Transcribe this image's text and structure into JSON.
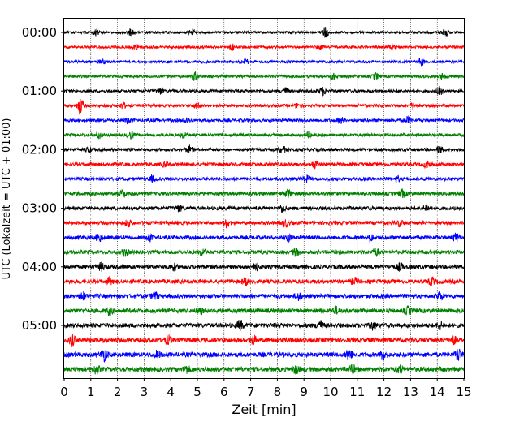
{
  "chart_data": {
    "type": "line",
    "title": "",
    "xlabel": "Zeit  [min]",
    "ylabel": "UTC (Lokalzeit = UTC + 01:00)",
    "xlim": [
      0,
      15
    ],
    "x_ticks": [
      0,
      1,
      2,
      3,
      4,
      5,
      6,
      7,
      8,
      9,
      10,
      11,
      12,
      13,
      14,
      15
    ],
    "x_grid": "dotted",
    "y_ticks": [
      "00:00",
      "01:00",
      "02:00",
      "03:00",
      "04:00",
      "05:00"
    ],
    "trace_interval_minutes": 15,
    "trace_colors_cycle": [
      "#000000",
      "#ff0000",
      "#0000ff",
      "#008000"
    ],
    "traces": [
      {
        "start": "00:00",
        "color": "#000000",
        "bursts": [
          [
            1.2,
            0.7
          ],
          [
            2.5,
            0.9
          ],
          [
            4.8,
            0.8
          ],
          [
            9.8,
            1.3
          ],
          [
            14.3,
            0.9
          ]
        ]
      },
      {
        "start": "00:15",
        "color": "#ff0000",
        "bursts": [
          [
            2.7,
            0.6
          ],
          [
            6.3,
            0.8
          ],
          [
            9.6,
            0.6
          ],
          [
            12.3,
            0.7
          ]
        ]
      },
      {
        "start": "00:30",
        "color": "#0000ff",
        "bursts": [
          [
            1.4,
            0.7
          ],
          [
            6.8,
            0.7
          ],
          [
            13.4,
            1.0
          ]
        ]
      },
      {
        "start": "00:45",
        "color": "#008000",
        "bursts": [
          [
            4.9,
            1.0
          ],
          [
            10.1,
            0.8
          ],
          [
            11.7,
            0.8
          ],
          [
            14.2,
            0.7
          ]
        ]
      },
      {
        "start": "01:00",
        "color": "#000000",
        "bursts": [
          [
            3.6,
            0.8
          ],
          [
            8.3,
            0.8
          ],
          [
            9.7,
            1.0
          ],
          [
            14.1,
            1.0
          ]
        ]
      },
      {
        "start": "01:15",
        "color": "#ff0000",
        "bursts": [
          [
            0.6,
            2.2
          ],
          [
            2.2,
            0.7
          ],
          [
            5.0,
            0.8
          ],
          [
            8.8,
            0.7
          ],
          [
            13.1,
            0.8
          ]
        ]
      },
      {
        "start": "01:30",
        "color": "#0000ff",
        "bursts": [
          [
            2.4,
            0.8
          ],
          [
            4.6,
            0.7
          ],
          [
            10.4,
            0.7
          ],
          [
            12.9,
            0.9
          ]
        ]
      },
      {
        "start": "01:45",
        "color": "#008000",
        "bursts": [
          [
            1.3,
            0.8
          ],
          [
            2.5,
            0.8
          ],
          [
            4.5,
            0.8
          ],
          [
            9.2,
            0.7
          ]
        ]
      },
      {
        "start": "02:00",
        "color": "#000000",
        "bursts": [
          [
            0.9,
            0.6
          ],
          [
            4.7,
            0.9
          ],
          [
            8.2,
            0.8
          ],
          [
            14.1,
            0.9
          ]
        ]
      },
      {
        "start": "02:15",
        "color": "#ff0000",
        "bursts": [
          [
            3.8,
            0.7
          ],
          [
            9.4,
            1.0
          ],
          [
            13.6,
            0.8
          ]
        ]
      },
      {
        "start": "02:30",
        "color": "#0000ff",
        "bursts": [
          [
            3.3,
            0.7
          ],
          [
            9.1,
            0.8
          ],
          [
            12.5,
            0.7
          ]
        ]
      },
      {
        "start": "02:45",
        "color": "#008000",
        "bursts": [
          [
            2.2,
            0.9
          ],
          [
            8.4,
            1.0
          ],
          [
            12.7,
            0.9
          ]
        ]
      },
      {
        "start": "03:00",
        "color": "#000000",
        "bursts": [
          [
            4.3,
            0.8
          ],
          [
            8.2,
            1.0
          ],
          [
            13.6,
            0.8
          ]
        ]
      },
      {
        "start": "03:15",
        "color": "#ff0000",
        "bursts": [
          [
            2.4,
            0.8
          ],
          [
            6.1,
            1.1
          ],
          [
            8.3,
            0.9
          ],
          [
            12.6,
            0.8
          ]
        ]
      },
      {
        "start": "03:30",
        "color": "#0000ff",
        "bursts": [
          [
            1.3,
            1.1
          ],
          [
            3.2,
            0.9
          ],
          [
            8.4,
            0.9
          ],
          [
            11.5,
            0.9
          ],
          [
            14.7,
            1.0
          ]
        ]
      },
      {
        "start": "03:45",
        "color": "#008000",
        "bursts": [
          [
            2.3,
            0.8
          ],
          [
            5.2,
            0.9
          ],
          [
            8.7,
            0.9
          ],
          [
            11.7,
            0.9
          ]
        ]
      },
      {
        "start": "04:00",
        "color": "#000000",
        "bursts": [
          [
            1.4,
            0.9
          ],
          [
            4.1,
            0.8
          ],
          [
            7.2,
            0.8
          ],
          [
            12.6,
            0.9
          ]
        ]
      },
      {
        "start": "04:15",
        "color": "#ff0000",
        "bursts": [
          [
            1.7,
            0.8
          ],
          [
            6.8,
            0.9
          ],
          [
            10.9,
            0.8
          ],
          [
            13.8,
            1.0
          ]
        ]
      },
      {
        "start": "04:30",
        "color": "#0000ff",
        "bursts": [
          [
            0.7,
            0.9
          ],
          [
            3.4,
            0.9
          ],
          [
            8.8,
            1.0
          ],
          [
            14.1,
            1.0
          ]
        ]
      },
      {
        "start": "04:45",
        "color": "#008000",
        "bursts": [
          [
            1.7,
            0.9
          ],
          [
            5.1,
            0.8
          ],
          [
            10.2,
            0.9
          ],
          [
            12.9,
            0.9
          ]
        ]
      },
      {
        "start": "05:00",
        "color": "#000000",
        "bursts": [
          [
            6.6,
            1.2
          ],
          [
            9.6,
            1.2
          ],
          [
            11.6,
            1.0
          ],
          [
            14.1,
            0.9
          ]
        ]
      },
      {
        "start": "05:15",
        "color": "#ff0000",
        "bursts": [
          [
            0.3,
            1.2
          ],
          [
            3.9,
            1.0
          ],
          [
            7.1,
            1.0
          ],
          [
            14.6,
            1.0
          ]
        ]
      },
      {
        "start": "05:30",
        "color": "#0000ff",
        "bursts": [
          [
            1.5,
            1.5
          ],
          [
            3.5,
            0.9
          ],
          [
            10.7,
            1.4
          ],
          [
            12.0,
            1.2
          ],
          [
            14.8,
            1.5
          ]
        ]
      },
      {
        "start": "05:45",
        "color": "#008000",
        "bursts": [
          [
            1.2,
            1.0
          ],
          [
            4.6,
            0.9
          ],
          [
            8.7,
            0.9
          ],
          [
            10.8,
            1.2
          ],
          [
            12.6,
            0.9
          ]
        ]
      }
    ]
  }
}
